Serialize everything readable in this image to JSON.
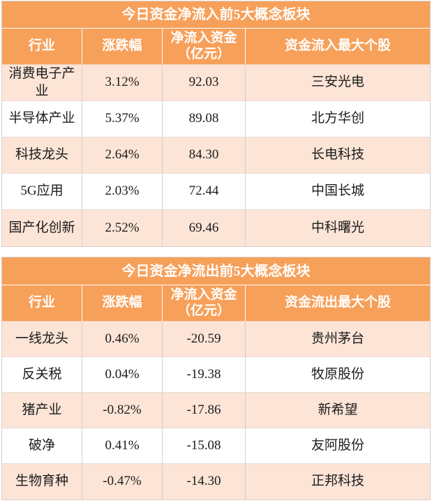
{
  "chart_data": [
    {
      "type": "table",
      "title": "今日资金净流入前5大概念板块",
      "columns": [
        "行业",
        "涨跌幅",
        "净流入资金（亿元）",
        "资金流入最大个股"
      ],
      "rows": [
        [
          "消费电子产业",
          "3.12%",
          "92.03",
          "三安光电"
        ],
        [
          "半导体产业",
          "5.37%",
          "89.08",
          "北方华创"
        ],
        [
          "科技龙头",
          "2.64%",
          "84.30",
          "长电科技"
        ],
        [
          "5G应用",
          "2.03%",
          "72.44",
          "中国长城"
        ],
        [
          "国产化创新",
          "2.52%",
          "69.46",
          "中科曙光"
        ]
      ]
    },
    {
      "type": "table",
      "title": "今日资金净流出前5大概念板块",
      "columns": [
        "行业",
        "涨跌幅",
        "净流入资金（亿元）",
        "资金流出最大个股"
      ],
      "rows": [
        [
          "一线龙头",
          "0.46%",
          "-20.59",
          "贵州茅台"
        ],
        [
          "反关税",
          "0.04%",
          "-19.38",
          "牧原股份"
        ],
        [
          "猪产业",
          "-0.82%",
          "-17.86",
          "新希望"
        ],
        [
          "破净",
          "0.41%",
          "-15.08",
          "友阿股份"
        ],
        [
          "生物育种",
          "-0.47%",
          "-14.30",
          "正邦科技"
        ]
      ]
    }
  ],
  "colors": {
    "header_bg": "#F7A05A",
    "header_text": "#FFFFFF",
    "stripe_bg": "#FCE4D6",
    "plain_bg": "#FFFFFF",
    "text": "#1C1C1C"
  }
}
